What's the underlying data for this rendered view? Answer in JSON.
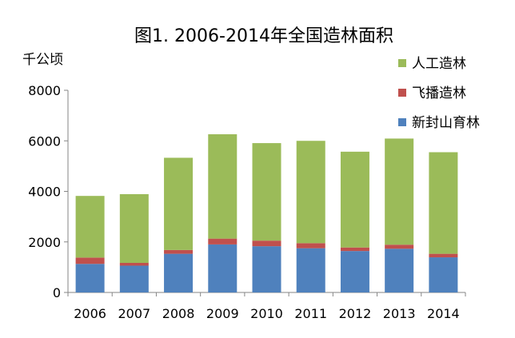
{
  "chart_data": {
    "type": "bar",
    "stacked": true,
    "title": "图1. 2006-2014年全国造林面积",
    "ylabel": "千公顷",
    "xlabel": "",
    "ylim": [
      0,
      8000
    ],
    "yticks": [
      0,
      2000,
      4000,
      6000,
      8000
    ],
    "grid": false,
    "legend": "right",
    "categories": [
      "2006",
      "2007",
      "2008",
      "2009",
      "2010",
      "2011",
      "2012",
      "2013",
      "2014"
    ],
    "series": [
      {
        "name": "新封山育林",
        "color": "#4F81BD",
        "values": [
          1130,
          1060,
          1530,
          1900,
          1830,
          1750,
          1640,
          1730,
          1390
        ]
      },
      {
        "name": "飞播造林",
        "color": "#C0504D",
        "values": [
          250,
          110,
          150,
          230,
          220,
          200,
          140,
          160,
          140
        ]
      },
      {
        "name": "人工造林",
        "color": "#9BBB59",
        "values": [
          2440,
          2720,
          3650,
          4130,
          3860,
          4050,
          3790,
          4200,
          4020
        ]
      }
    ]
  }
}
